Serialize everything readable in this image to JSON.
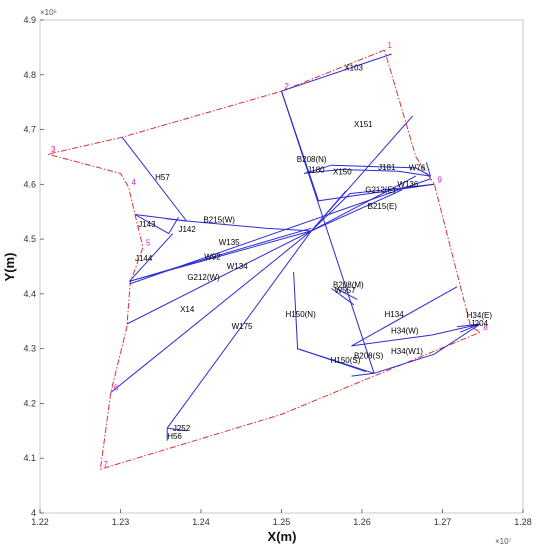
{
  "chart_data": {
    "type": "line",
    "xlabel": "X(m)",
    "ylabel": "Y(m)",
    "x_exponent": "×10⁷",
    "y_exponent": "×10⁶",
    "xlim": [
      12200000,
      12800000
    ],
    "ylim": [
      4000000,
      4900000
    ],
    "x_ticks": [
      {
        "value": 12200000,
        "label": "1.22"
      },
      {
        "value": 12300000,
        "label": "1.23"
      },
      {
        "value": 12400000,
        "label": "1.24"
      },
      {
        "value": 12500000,
        "label": "1.25"
      },
      {
        "value": 12600000,
        "label": "1.26"
      },
      {
        "value": 12700000,
        "label": "1.27"
      },
      {
        "value": 12800000,
        "label": "1.28"
      }
    ],
    "y_ticks": [
      {
        "value": 4000000,
        "label": "4"
      },
      {
        "value": 4100000,
        "label": "4.1"
      },
      {
        "value": 4200000,
        "label": "4.2"
      },
      {
        "value": 4300000,
        "label": "4.3"
      },
      {
        "value": 4400000,
        "label": "4.4"
      },
      {
        "value": 4500000,
        "label": "4.5"
      },
      {
        "value": 4600000,
        "label": "4.6"
      },
      {
        "value": 4700000,
        "label": "4.7"
      },
      {
        "value": 4800000,
        "label": "4.8"
      },
      {
        "value": 4900000,
        "label": "4.9"
      }
    ],
    "grid": false,
    "colors": {
      "boundary": "#e03030",
      "lines": "#2b2bd6",
      "vertex_labels": "#cc22cc",
      "labels": "#000000"
    },
    "boundary": {
      "style": "dash-dot",
      "vertices": [
        {
          "label": "1",
          "x": 12628000,
          "y": 4845000
        },
        {
          "label": "2",
          "x": 12500000,
          "y": 4770000
        },
        {
          "label": "3",
          "x": 12210000,
          "y": 4655000
        },
        {
          "label": "4",
          "x": 12310000,
          "y": 4595000
        },
        {
          "label": "5",
          "x": 12328000,
          "y": 4485000
        },
        {
          "label": "6",
          "x": 12288000,
          "y": 4220000
        },
        {
          "label": "7",
          "x": 12275000,
          "y": 4080000
        },
        {
          "label": "8",
          "x": 12747000,
          "y": 4330000
        },
        {
          "label": "9",
          "x": 12690000,
          "y": 4600000
        }
      ],
      "path": [
        [
          12628000,
          4845000
        ],
        [
          12500000,
          4770000
        ],
        [
          12302000,
          4686000
        ],
        [
          12210000,
          4655000
        ],
        [
          12300000,
          4620000
        ],
        [
          12310000,
          4595000
        ],
        [
          12318000,
          4545000
        ],
        [
          12328000,
          4485000
        ],
        [
          12312000,
          4420000
        ],
        [
          12308000,
          4340000
        ],
        [
          12288000,
          4220000
        ],
        [
          12275000,
          4080000
        ],
        [
          12500000,
          4180000
        ],
        [
          12628000,
          4258000
        ],
        [
          12747000,
          4330000
        ],
        [
          12735000,
          4340000
        ],
        [
          12690000,
          4600000
        ],
        [
          12667000,
          4650000
        ],
        [
          12628000,
          4845000
        ]
      ],
      "vertex_label_color": "#cc22cc"
    },
    "series": [
      {
        "name": "X103",
        "points": [
          [
            12500000,
            4770000
          ],
          [
            12637000,
            4838000
          ]
        ]
      },
      {
        "name": "X151",
        "points": [
          [
            12500000,
            4770000
          ],
          [
            12546000,
            4570000
          ],
          [
            12690000,
            4600000
          ]
        ]
      },
      {
        "name": "",
        "points": [
          [
            12500000,
            4770000
          ],
          [
            12615000,
            4255000
          ]
        ]
      },
      {
        "name": "H57",
        "points": [
          [
            12302000,
            4686000
          ],
          [
            12382000,
            4533000
          ]
        ]
      },
      {
        "name": "B215(W)",
        "points": [
          [
            12318000,
            4545000
          ],
          [
            12382000,
            4533000
          ],
          [
            12480000,
            4520000
          ],
          [
            12537000,
            4515000
          ]
        ]
      },
      {
        "name": "J143",
        "points": [
          [
            12318000,
            4545000
          ],
          [
            12360000,
            4510000
          ],
          [
            12372000,
            4540000
          ]
        ]
      },
      {
        "name": "J142",
        "points": [
          [
            12357000,
            4537000
          ],
          [
            12382000,
            4533000
          ]
        ]
      },
      {
        "name": "J144",
        "points": [
          [
            12311000,
            4423000
          ],
          [
            12365000,
            4510000
          ]
        ]
      },
      {
        "name": "W92",
        "points": [
          [
            12311000,
            4423000
          ],
          [
            12537000,
            4515000
          ]
        ]
      },
      {
        "name": "G212(W)",
        "points": [
          [
            12311000,
            4423000
          ],
          [
            12537000,
            4520000
          ]
        ]
      },
      {
        "name": "W135",
        "points": [
          [
            12311000,
            4418000
          ],
          [
            12685000,
            4610000
          ]
        ]
      },
      {
        "name": "W134",
        "points": [
          [
            12308000,
            4345000
          ],
          [
            12537000,
            4515000
          ]
        ]
      },
      {
        "name": "X14",
        "points": [
          [
            12288000,
            4220000
          ],
          [
            12537000,
            4515000
          ]
        ]
      },
      {
        "name": "W175",
        "points": [
          [
            12358000,
            4155000
          ],
          [
            12537000,
            4515000
          ]
        ]
      },
      {
        "name": "J252",
        "points": [
          [
            12358000,
            4155000
          ],
          [
            12382000,
            4150000
          ]
        ]
      },
      {
        "name": "H56",
        "points": [
          [
            12358000,
            4155000
          ],
          [
            12358000,
            4132000
          ]
        ]
      },
      {
        "name": "B215(E)",
        "points": [
          [
            12537000,
            4515000
          ],
          [
            12585000,
            4583000
          ],
          [
            12690000,
            4600000
          ]
        ]
      },
      {
        "name": "G212(E)",
        "points": [
          [
            12537000,
            4515000
          ],
          [
            12667000,
            4615000
          ]
        ]
      },
      {
        "name": "W136",
        "points": [
          [
            12537000,
            4515000
          ],
          [
            12650000,
            4590000
          ]
        ]
      },
      {
        "name": "",
        "points": [
          [
            12537000,
            4515000
          ],
          [
            12663000,
            4725000
          ]
        ]
      },
      {
        "name": "B208(N)",
        "points": [
          [
            12529000,
            4620000
          ],
          [
            12562000,
            4635000
          ],
          [
            12667000,
            4630000
          ],
          [
            12685000,
            4615000
          ]
        ]
      },
      {
        "name": "J180",
        "points": [
          [
            12528000,
            4620000
          ],
          [
            12573000,
            4627000
          ]
        ]
      },
      {
        "name": "X150",
        "points": [
          [
            12537000,
            4515000
          ],
          [
            12580000,
            4588000
          ]
        ]
      },
      {
        "name": "J181",
        "points": [
          [
            12573000,
            4627000
          ],
          [
            12645000,
            4624000
          ]
        ]
      },
      {
        "name": "W76",
        "points": [
          [
            12645000,
            4624000
          ],
          [
            12685000,
            4615000
          ],
          [
            12680000,
            4640000
          ]
        ]
      },
      {
        "name": "H150(N)",
        "points": [
          [
            12515000,
            4440000
          ],
          [
            12520000,
            4300000
          ],
          [
            12615000,
            4255000
          ]
        ]
      },
      {
        "name": "B208(M)",
        "points": [
          [
            12562000,
            4410000
          ],
          [
            12590000,
            4380000
          ]
        ]
      },
      {
        "name": "W557",
        "points": [
          [
            12568000,
            4410000
          ],
          [
            12594000,
            4390000
          ]
        ]
      },
      {
        "name": "H150(S)",
        "points": [
          [
            12520000,
            4300000
          ],
          [
            12605000,
            4258000
          ]
        ]
      },
      {
        "name": "B208(S)",
        "points": [
          [
            12587000,
            4250000
          ],
          [
            12615000,
            4255000
          ]
        ]
      },
      {
        "name": "H134",
        "points": [
          [
            12587000,
            4305000
          ],
          [
            12718000,
            4413000
          ]
        ]
      },
      {
        "name": "H34(W)",
        "points": [
          [
            12587000,
            4305000
          ],
          [
            12687000,
            4325000
          ],
          [
            12747000,
            4345000
          ]
        ]
      },
      {
        "name": "H34(W1)",
        "points": [
          [
            12615000,
            4255000
          ],
          [
            12690000,
            4290000
          ],
          [
            12747000,
            4345000
          ]
        ]
      },
      {
        "name": "H34(E)",
        "points": [
          [
            12718000,
            4340000
          ],
          [
            12747000,
            4345000
          ]
        ]
      },
      {
        "name": "J204",
        "points": [
          [
            12722000,
            4330000
          ],
          [
            12747000,
            4345000
          ]
        ]
      }
    ],
    "labels": [
      {
        "text": "X103",
        "x": 12578000,
        "y": 4808000
      },
      {
        "text": "X151",
        "x": 12590000,
        "y": 4705000
      },
      {
        "text": "H57",
        "x": 12343000,
        "y": 4608000
      },
      {
        "text": "B208(N)",
        "x": 12519000,
        "y": 4641000
      },
      {
        "text": "J180",
        "x": 12532000,
        "y": 4622000
      },
      {
        "text": "X150",
        "x": 12564000,
        "y": 4618000
      },
      {
        "text": "J181",
        "x": 12620000,
        "y": 4626000
      },
      {
        "text": "W76",
        "x": 12658000,
        "y": 4625000
      },
      {
        "text": "W136",
        "x": 12644000,
        "y": 4595000
      },
      {
        "text": "G212(E)",
        "x": 12604000,
        "y": 4585000
      },
      {
        "text": "B215(E)",
        "x": 12607000,
        "y": 4555000
      },
      {
        "text": "B215(W)",
        "x": 12403000,
        "y": 4530000
      },
      {
        "text": "J143",
        "x": 12322000,
        "y": 4522000
      },
      {
        "text": "J142",
        "x": 12372000,
        "y": 4513000
      },
      {
        "text": "W135",
        "x": 12422000,
        "y": 4489000
      },
      {
        "text": "W92",
        "x": 12404000,
        "y": 4463000
      },
      {
        "text": "J144",
        "x": 12318000,
        "y": 4460000
      },
      {
        "text": "W134",
        "x": 12432000,
        "y": 4445000
      },
      {
        "text": "G212(W)",
        "x": 12383000,
        "y": 4425000
      },
      {
        "text": "B208(M)",
        "x": 12564000,
        "y": 4412000
      },
      {
        "text": "W557",
        "x": 12566000,
        "y": 4402000
      },
      {
        "text": "X14",
        "x": 12374000,
        "y": 4367000
      },
      {
        "text": "H150(N)",
        "x": 12505000,
        "y": 4358000
      },
      {
        "text": "H134",
        "x": 12628000,
        "y": 4358000
      },
      {
        "text": "W175",
        "x": 12438000,
        "y": 4336000
      },
      {
        "text": "H34(E)",
        "x": 12730000,
        "y": 4356000
      },
      {
        "text": "J204",
        "x": 12735000,
        "y": 4341000
      },
      {
        "text": "H34(W)",
        "x": 12636000,
        "y": 4328000
      },
      {
        "text": "H34(W1)",
        "x": 12636000,
        "y": 4290000
      },
      {
        "text": "B208(S)",
        "x": 12590000,
        "y": 4282000
      },
      {
        "text": "H150(S)",
        "x": 12561000,
        "y": 4274000
      },
      {
        "text": "J252",
        "x": 12365000,
        "y": 4150000
      },
      {
        "text": "H56",
        "x": 12358000,
        "y": 4135000
      }
    ]
  }
}
